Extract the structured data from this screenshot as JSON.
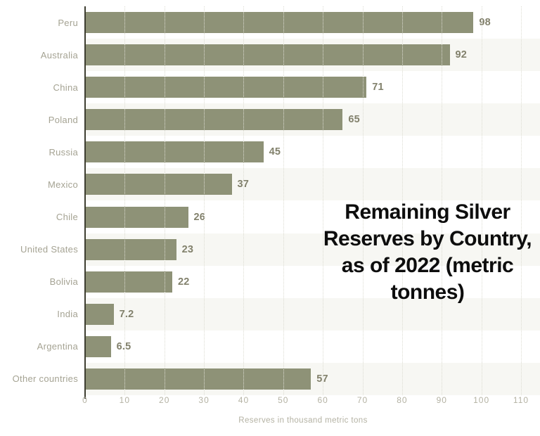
{
  "chart_data": {
    "type": "bar",
    "orientation": "horizontal",
    "title": "Remaining Silver Reserves by Country, as of 2022 (metric tonnes)",
    "title_lines": [
      "Remaining Silver",
      "Reserves by Country,",
      "as of 2022 (metric",
      "tonnes)"
    ],
    "xlabel": "Reserves in thousand metric tons",
    "categories": [
      "Peru",
      "Australia",
      "China",
      "Poland",
      "Russia",
      "Mexico",
      "Chile",
      "United States",
      "Bolivia",
      "India",
      "Argentina",
      "Other countries"
    ],
    "values": [
      98,
      92,
      71,
      65,
      45,
      37,
      26,
      23,
      22,
      7.2,
      6.5,
      57
    ],
    "value_labels": [
      "98",
      "92",
      "71",
      "65",
      "45",
      "37",
      "26",
      "23",
      "22",
      "7.2",
      "6.5",
      "57"
    ],
    "xlim": [
      0,
      110
    ],
    "xticks": [
      "0",
      "10",
      "20",
      "30",
      "40",
      "50",
      "60",
      "70",
      "80",
      "90",
      "100",
      "110"
    ],
    "grid": "vertical-dotted",
    "legend": "none",
    "row_stripes": "alternating"
  },
  "colors": {
    "bar": "#8E9277",
    "category_label": "#A5A393",
    "value_label": "#82816C",
    "tick_label": "#B4B2A3",
    "axis_line": "#3E3E31",
    "gridline": "#DCDCD2",
    "row_stripe": "#F7F7F3",
    "title_text": "#0D0D0D",
    "background": "#FFFFFF"
  }
}
